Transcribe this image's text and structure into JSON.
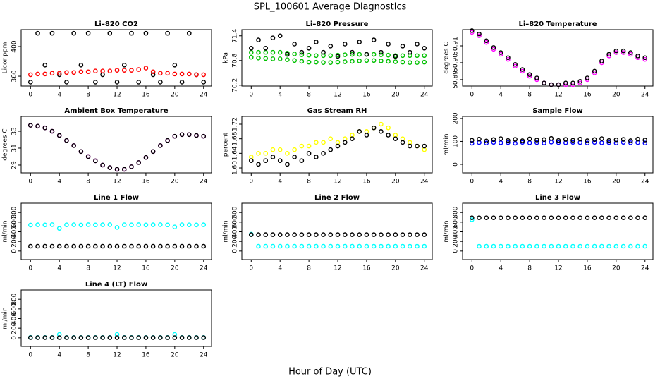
{
  "title": "SPL_100601  Average Diagnostics",
  "x_label": "Hour of Day (UTC)",
  "chart_data": [
    {
      "type": "scatter",
      "title": "Li–820 CO2",
      "y_label": "Licor ppm",
      "x": [
        0,
        1,
        2,
        3,
        4,
        5,
        6,
        7,
        8,
        9,
        10,
        11,
        12,
        13,
        14,
        15,
        16,
        17,
        18,
        19,
        20,
        21,
        22,
        23,
        24
      ],
      "xlim": [
        -1.3,
        25.1
      ],
      "xticks": [
        0,
        4,
        8,
        12,
        16,
        20,
        24
      ],
      "ylim": [
        346.7,
        422.9
      ],
      "yticks": [
        360,
        400
      ],
      "series": [
        {
          "color": "#000000",
          "values": [
            352,
            418,
            375,
            418,
            362,
            352,
            418,
            375,
            418,
            352,
            362,
            418,
            352,
            375,
            418,
            352,
            418,
            362,
            352,
            418,
            375,
            352,
            418,
            362,
            352
          ]
        },
        {
          "color": "#ff0000",
          "values": [
            362,
            363,
            363,
            364,
            364,
            365,
            365,
            366,
            366,
            367,
            367,
            367,
            368,
            368,
            368,
            369,
            371,
            366,
            364,
            364,
            363,
            363,
            363,
            362,
            362
          ]
        }
      ]
    },
    {
      "type": "scatter",
      "title": "Li–820 Pressure",
      "y_label": "kPa",
      "x": [
        0,
        1,
        2,
        3,
        4,
        5,
        6,
        7,
        8,
        9,
        10,
        11,
        12,
        13,
        14,
        15,
        16,
        17,
        18,
        19,
        20,
        21,
        22,
        23,
        24
      ],
      "xlim": [
        -1.3,
        25.1
      ],
      "xticks": [
        0,
        4,
        8,
        12,
        16,
        20,
        24
      ],
      "ylim": [
        70.18,
        71.55
      ],
      "yticks": [
        70.2,
        70.8,
        71.4
      ],
      "series": [
        {
          "color": "#00c000",
          "values": [
            71.0,
            71.0,
            71.0,
            71.0,
            71.0,
            70.98,
            70.96,
            70.94,
            70.93,
            70.92,
            70.92,
            70.92,
            70.93,
            70.94,
            70.95,
            70.95,
            70.95,
            70.95,
            70.94,
            70.93,
            70.92,
            70.92,
            70.92,
            70.92,
            70.92
          ]
        },
        {
          "color": "#00c000",
          "values": [
            70.88,
            70.86,
            70.85,
            70.84,
            70.84,
            70.82,
            70.8,
            70.78,
            70.76,
            70.76,
            70.75,
            70.75,
            70.76,
            70.77,
            70.78,
            70.79,
            70.8,
            70.8,
            70.79,
            70.78,
            70.77,
            70.76,
            70.75,
            70.75,
            70.76
          ]
        },
        {
          "color": "#000000",
          "values": [
            71.1,
            71.3,
            71.1,
            71.35,
            71.4,
            70.95,
            71.2,
            71.0,
            71.1,
            71.25,
            71.0,
            71.15,
            70.9,
            71.2,
            71.0,
            71.25,
            70.95,
            71.3,
            71.0,
            71.2,
            70.9,
            71.15,
            71.0,
            71.2,
            71.1
          ]
        }
      ]
    },
    {
      "type": "scatter",
      "title": "Li–820 Temperature",
      "y_label": "degrees C",
      "x": [
        0,
        1,
        2,
        3,
        4,
        5,
        6,
        7,
        8,
        9,
        10,
        11,
        12,
        13,
        14,
        15,
        16,
        17,
        18,
        19,
        20,
        21,
        22,
        23,
        24
      ],
      "xlim": [
        -1.3,
        25.1
      ],
      "xticks": [
        0,
        4,
        8,
        12,
        16,
        20,
        24
      ],
      "ylim": [
        50.8862,
        50.9196
      ],
      "yticks": [
        50.89,
        {
          "value": 50.9,
          "label": "50.90"
        },
        50.91
      ],
      "series": [
        {
          "color": "#ff00ff",
          "values": [
            50.918,
            50.916,
            50.912,
            50.908,
            50.905,
            50.902,
            50.898,
            50.895,
            50.892,
            50.89,
            50.888,
            50.887,
            50.887,
            50.887,
            50.887,
            50.888,
            50.89,
            50.894,
            50.9,
            50.904,
            50.906,
            50.906,
            50.905,
            50.903,
            50.902
          ]
        },
        {
          "color": "#000000",
          "values": [
            50.919,
            50.917,
            50.913,
            50.909,
            50.906,
            50.903,
            50.899,
            50.896,
            50.893,
            50.891,
            50.888,
            50.887,
            50.887,
            50.888,
            50.888,
            50.889,
            50.891,
            50.895,
            50.901,
            50.905,
            50.907,
            50.907,
            50.906,
            50.904,
            50.903
          ]
        }
      ]
    },
    {
      "type": "scatter",
      "title": "Ambient Box Temperature",
      "y_label": "degrees C",
      "x": [
        0,
        1,
        2,
        3,
        4,
        5,
        6,
        7,
        8,
        9,
        10,
        11,
        12,
        13,
        14,
        15,
        16,
        17,
        18,
        19,
        20,
        21,
        22,
        23,
        24
      ],
      "xlim": [
        -1.3,
        25.1
      ],
      "xticks": [
        0,
        4,
        8,
        12,
        16,
        20,
        24
      ],
      "ylim": [
        28.08,
        34.75
      ],
      "yticks": [
        29,
        31,
        33
      ],
      "series": [
        {
          "color": "#ff00ff",
          "values": [
            33.7,
            33.6,
            33.4,
            33.0,
            32.5,
            31.9,
            31.3,
            30.6,
            30.0,
            29.5,
            29.0,
            28.7,
            28.5,
            28.5,
            28.8,
            29.3,
            29.9,
            30.6,
            31.3,
            31.9,
            32.4,
            32.6,
            32.6,
            32.5,
            32.4
          ]
        },
        {
          "color": "#000000",
          "values": [
            33.7,
            33.6,
            33.4,
            33.0,
            32.5,
            31.9,
            31.3,
            30.6,
            30.0,
            29.5,
            29.0,
            28.7,
            28.5,
            28.5,
            28.8,
            29.3,
            29.9,
            30.6,
            31.3,
            31.9,
            32.4,
            32.6,
            32.6,
            32.5,
            32.4
          ]
        }
      ]
    },
    {
      "type": "scatter",
      "title": "Gas Stream RH",
      "y_label": "percent",
      "x": [
        0,
        1,
        2,
        3,
        4,
        5,
        6,
        7,
        8,
        9,
        10,
        11,
        12,
        13,
        14,
        15,
        16,
        17,
        18,
        19,
        20,
        21,
        22,
        23,
        24
      ],
      "xlim": [
        -1.3,
        25.1
      ],
      "xticks": [
        0,
        4,
        8,
        12,
        16,
        20,
        24
      ],
      "ylim": [
        1.5865,
        1.7413
      ],
      "yticks": [
        {
          "value": 1.6,
          "label": "1.60"
        },
        1.64,
        1.68,
        1.72
      ],
      "series": [
        {
          "color": "#ffff00",
          "values": [
            1.63,
            1.64,
            1.64,
            1.65,
            1.65,
            1.64,
            1.65,
            1.66,
            1.66,
            1.67,
            1.67,
            1.68,
            1.67,
            1.68,
            1.69,
            1.7,
            1.7,
            1.71,
            1.72,
            1.71,
            1.69,
            1.68,
            1.67,
            1.66,
            1.65
          ]
        },
        {
          "color": "#000000",
          "values": [
            1.62,
            1.61,
            1.62,
            1.63,
            1.62,
            1.61,
            1.63,
            1.62,
            1.64,
            1.63,
            1.64,
            1.65,
            1.66,
            1.67,
            1.68,
            1.7,
            1.69,
            1.71,
            1.7,
            1.69,
            1.68,
            1.67,
            1.66,
            1.66,
            1.66
          ]
        }
      ]
    },
    {
      "type": "scatter",
      "title": "Sample Flow",
      "y_label": "ml/min",
      "x": [
        0,
        1,
        2,
        3,
        4,
        5,
        6,
        7,
        8,
        9,
        10,
        11,
        12,
        13,
        14,
        15,
        16,
        17,
        18,
        19,
        20,
        21,
        22,
        23,
        24
      ],
      "xlim": [
        -1.3,
        25.1
      ],
      "xticks": [
        0,
        4,
        8,
        12,
        16,
        20,
        24
      ],
      "ylim": [
        -37,
        209
      ],
      "yticks": [
        0,
        100,
        200
      ],
      "series": [
        {
          "color": "#0000ff",
          "values": [
            92,
            95,
            93,
            96,
            94,
            95,
            92,
            96,
            94,
            95,
            93,
            97,
            95,
            94,
            96,
            95,
            93,
            96,
            94,
            95,
            93,
            96,
            94,
            95,
            93
          ]
        },
        {
          "color": "#000000",
          "values": [
            105,
            110,
            102,
            108,
            112,
            104,
            109,
            103,
            111,
            106,
            108,
            113,
            104,
            109,
            105,
            110,
            103,
            108,
            112,
            104,
            107,
            109,
            103,
            110,
            106
          ]
        }
      ]
    },
    {
      "type": "scatter",
      "title": "Line 1 Flow",
      "y_label": "ml/min",
      "x": [
        0,
        1,
        2,
        3,
        4,
        5,
        6,
        7,
        8,
        9,
        10,
        11,
        12,
        13,
        14,
        15,
        16,
        17,
        18,
        19,
        20,
        21,
        22,
        23,
        24
      ],
      "xlim": [
        -1.3,
        25.1
      ],
      "xticks": [
        0,
        4,
        8,
        12,
        16,
        20,
        24
      ],
      "ylim": [
        -178,
        993
      ],
      "yticks": [
        0,
        200,
        400,
        600,
        800
      ],
      "series": [
        {
          "color": "#00ffff",
          "values": [
            540,
            545,
            542,
            548,
            470,
            544,
            546,
            541,
            547,
            543,
            545,
            548,
            490,
            546,
            544,
            547,
            542,
            545,
            548,
            543,
            500,
            546,
            544,
            542,
            545
          ]
        },
        {
          "color": "#000000",
          "values": [
            100,
            100,
            100,
            100,
            100,
            100,
            100,
            100,
            100,
            100,
            100,
            100,
            100,
            100,
            100,
            100,
            100,
            100,
            100,
            100,
            100,
            100,
            100,
            100,
            100
          ]
        }
      ]
    },
    {
      "type": "scatter",
      "title": "Line 2 Flow",
      "y_label": "ml/min",
      "x": [
        0,
        1,
        2,
        3,
        4,
        5,
        6,
        7,
        8,
        9,
        10,
        11,
        12,
        13,
        14,
        15,
        16,
        17,
        18,
        19,
        20,
        21,
        22,
        23,
        24
      ],
      "xlim": [
        -1.3,
        25.1
      ],
      "xticks": [
        0,
        4,
        8,
        12,
        16,
        20,
        24
      ],
      "ylim": [
        -178,
        993
      ],
      "yticks": [
        0,
        200,
        400,
        600,
        800
      ],
      "series": [
        {
          "color": "#00ffff",
          "values": [
            350,
            100,
            100,
            100,
            100,
            100,
            100,
            100,
            100,
            100,
            100,
            100,
            100,
            100,
            100,
            100,
            100,
            100,
            100,
            100,
            100,
            100,
            100,
            100,
            100
          ]
        },
        {
          "color": "#000000",
          "values": [
            340,
            340,
            340,
            340,
            340,
            340,
            340,
            340,
            340,
            340,
            340,
            340,
            340,
            340,
            340,
            340,
            340,
            340,
            340,
            340,
            340,
            340,
            340,
            340,
            340
          ]
        }
      ]
    },
    {
      "type": "scatter",
      "title": "Line 3 Flow",
      "y_label": "ml/min",
      "x": [
        0,
        1,
        2,
        3,
        4,
        5,
        6,
        7,
        8,
        9,
        10,
        11,
        12,
        13,
        14,
        15,
        16,
        17,
        18,
        19,
        20,
        21,
        22,
        23,
        24
      ],
      "xlim": [
        -1.3,
        25.1
      ],
      "xticks": [
        0,
        4,
        8,
        12,
        16,
        20,
        24
      ],
      "ylim": [
        -178,
        993
      ],
      "yticks": [
        0,
        200,
        400,
        600,
        800
      ],
      "series": [
        {
          "color": "#00ffff",
          "values": [
            650,
            100,
            100,
            100,
            100,
            100,
            100,
            100,
            100,
            100,
            100,
            100,
            100,
            100,
            100,
            100,
            100,
            100,
            100,
            100,
            100,
            100,
            100,
            100,
            100
          ]
        },
        {
          "color": "#000000",
          "values": [
            690,
            690,
            690,
            690,
            690,
            690,
            690,
            690,
            690,
            690,
            690,
            690,
            690,
            690,
            690,
            690,
            690,
            690,
            690,
            690,
            690,
            690,
            690,
            690,
            690
          ]
        }
      ]
    },
    {
      "type": "scatter",
      "title": "Line 4 (LT) Flow",
      "y_label": "ml/min",
      "x": [
        0,
        1,
        2,
        3,
        4,
        5,
        6,
        7,
        8,
        9,
        10,
        11,
        12,
        13,
        14,
        15,
        16,
        17,
        18,
        19,
        20,
        21,
        22,
        23,
        24
      ],
      "xlim": [
        -1.3,
        25.1
      ],
      "xticks": [
        0,
        4,
        8,
        12,
        16,
        20,
        24
      ],
      "ylim": [
        -178,
        993
      ],
      "yticks": [
        0,
        200,
        400,
        600,
        800
      ],
      "series": [
        {
          "color": "#00ffff",
          "values": [
            10,
            8,
            8,
            8,
            70,
            8,
            8,
            8,
            8,
            8,
            8,
            8,
            70,
            8,
            8,
            8,
            8,
            8,
            8,
            8,
            70,
            8,
            8,
            8,
            8
          ]
        },
        {
          "color": "#000000",
          "values": [
            5,
            5,
            5,
            5,
            5,
            5,
            5,
            5,
            5,
            5,
            5,
            5,
            5,
            5,
            5,
            5,
            5,
            5,
            5,
            5,
            5,
            5,
            5,
            5,
            5
          ]
        }
      ]
    }
  ]
}
